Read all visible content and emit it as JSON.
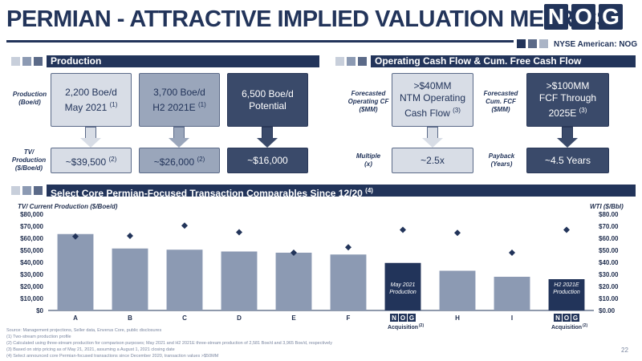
{
  "header": {
    "title": "PERMIAN - ATTRACTIVE IMPLIED VALUATION METRICS",
    "logo_letters": [
      "N",
      "O",
      "G"
    ],
    "exchange": "NYSE American: NOG"
  },
  "production": {
    "heading": "Production",
    "row1_label": [
      "Production",
      "(Boe/d)"
    ],
    "row2_label": [
      "TV/",
      "Production",
      "($/Boe/d)"
    ],
    "boxes": [
      {
        "line1": "2,200 Boe/d",
        "line2": "May 2021",
        "sup": "(1)"
      },
      {
        "line1": "3,700 Boe/d",
        "line2": "H2 2021E",
        "sup": "(1)"
      },
      {
        "line1": "6,500 Boe/d",
        "line2": "Potential",
        "sup": ""
      }
    ],
    "values": [
      {
        "text": "~$39,500",
        "sup": "(2)"
      },
      {
        "text": "~$26,000",
        "sup": "(2)"
      },
      {
        "text": "~$16,000",
        "sup": ""
      }
    ]
  },
  "cashflow": {
    "heading": "Operating Cash Flow & Cum. Free Cash Flow",
    "label_ocf": [
      "Forecasted",
      "Operating CF",
      "($MM)"
    ],
    "label_fcf": [
      "Forecasted",
      "Cum. FCF",
      "($MM)"
    ],
    "label_multiple": [
      "Multiple",
      "(x)"
    ],
    "label_payback": [
      "Payback",
      "(Years)"
    ],
    "ocf_box": {
      "line1": ">$40MM",
      "line2": "NTM Operating",
      "line3": "Cash Flow",
      "sup": "(3)"
    },
    "fcf_box": {
      "line1": ">$100MM",
      "line2": "FCF Through",
      "line3": "2025E",
      "sup": "(3)"
    },
    "multiple_value": "~2.5x",
    "payback_value": "~4.5 Years"
  },
  "comparables": {
    "heading": "Select Core Permian-Focused Transaction Comparables Since 12/20",
    "heading_sup": "(4)"
  },
  "chart_data": {
    "type": "bar",
    "title": "Select Core Permian-Focused Transaction Comparables Since 12/20",
    "ylabel": "TV/ Current Production ($/Boe/d)",
    "y2label": "WTI ($/Bbl)",
    "ylim": [
      0,
      80000
    ],
    "y2lim": [
      0,
      80
    ],
    "yticks": [
      "$0",
      "$10,000",
      "$20,000",
      "$30,000",
      "$40,000",
      "$50,000",
      "$60,000",
      "$70,000",
      "$80,000"
    ],
    "y2ticks": [
      "$0.00",
      "$10.00",
      "$20.00",
      "$30.00",
      "$40.00",
      "$50.00",
      "$60.00",
      "$70.00",
      "$80.00"
    ],
    "categories": [
      "A",
      "B",
      "C",
      "D",
      "E",
      "F",
      "NOG Acquisition",
      "H",
      "I",
      "NOG Acquisition"
    ],
    "bar_values": [
      63500,
      51500,
      50500,
      49000,
      48000,
      46500,
      39500,
      33000,
      28000,
      26000
    ],
    "wti_values": [
      61.5,
      62,
      70.5,
      65,
      48,
      52.5,
      67,
      64.5,
      48,
      67
    ],
    "bar_colors": [
      "#8c9ab3",
      "#8c9ab3",
      "#8c9ab3",
      "#8c9ab3",
      "#8c9ab3",
      "#8c9ab3",
      "#22345a",
      "#8c9ab3",
      "#8c9ab3",
      "#22345a"
    ],
    "bar_annotations": [
      "",
      "",
      "",
      "",
      "",
      "",
      "May 2021 Production",
      "",
      "",
      "H2 2021E Production"
    ],
    "acquisition_label": "Acquisition",
    "acquisition_sup": "(2)"
  },
  "footnotes": {
    "source": "Source: Management projections, Seller data, Enverus Core, public disclosures",
    "notes": [
      "(1)     Two-stream production profile",
      "(2)     Calculated using three-stream production for comparison purposes; May 2021 and H2 2021E three-stream production of 2,581 Boe/d and 3,965 Boe/d, respectively",
      "(3)     Based on strip pricing as of May 21, 2021, assuming a August 1, 2021 closing date",
      "(4)     Select announced core Permian-focused transactions since December 2020, transaction values >$50MM"
    ]
  },
  "page_number": "22",
  "colors": {
    "navy": "#22345a",
    "bar_gray": "#8c9ab3",
    "light_box": "#d8dde6",
    "mid_box": "#9aa6bb",
    "dark_box": "#3a4a6a"
  }
}
